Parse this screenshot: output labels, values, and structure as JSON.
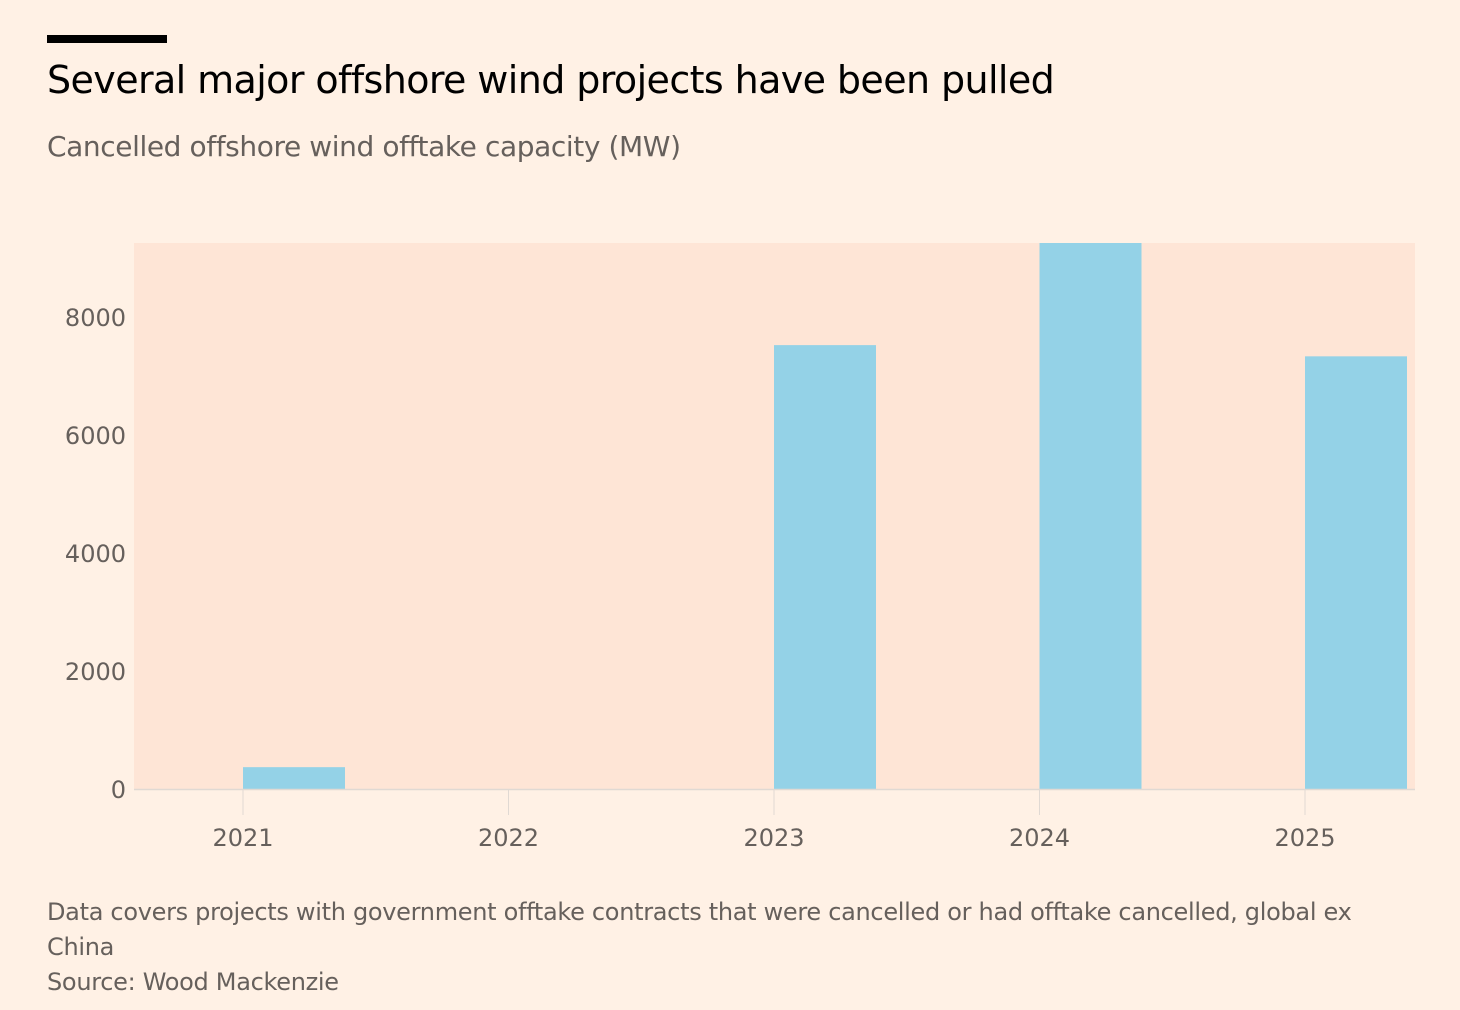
{
  "header": {
    "title": "Several major offshore wind projects have been pulled",
    "subtitle": "Cancelled offshore wind offtake capacity (MW)"
  },
  "footer": {
    "note": "Data covers projects with government offtake contracts that were cancelled or had offtake cancelled, global ex China",
    "source": "Source: Wood Mackenzie"
  },
  "colors": {
    "background": "#FFF1E5",
    "plot_background": "#FEE5D6",
    "bar": "#94D2E7",
    "text": "#66605C",
    "baseline": "#E0D9D3"
  },
  "chart_data": {
    "type": "bar",
    "title": "Several major offshore wind projects have been pulled",
    "subtitle": "Cancelled offshore wind offtake capacity (MW)",
    "xlabel": "",
    "ylabel": "Cancelled offshore wind offtake capacity (MW)",
    "categories": [
      "2021",
      "2022",
      "2023",
      "2024",
      "2025"
    ],
    "values": [
      370,
      0,
      7520,
      9300,
      7330
    ],
    "ylim": [
      0,
      9250
    ],
    "yticks": [
      0,
      2000,
      4000,
      6000,
      8000
    ],
    "ytick_labels": [
      "0",
      "2000",
      "4000",
      "6000",
      "8000"
    ],
    "grid": false,
    "legend": "none",
    "annotations": [
      "2024 bar extends beyond top of axis (clipped)"
    ]
  }
}
